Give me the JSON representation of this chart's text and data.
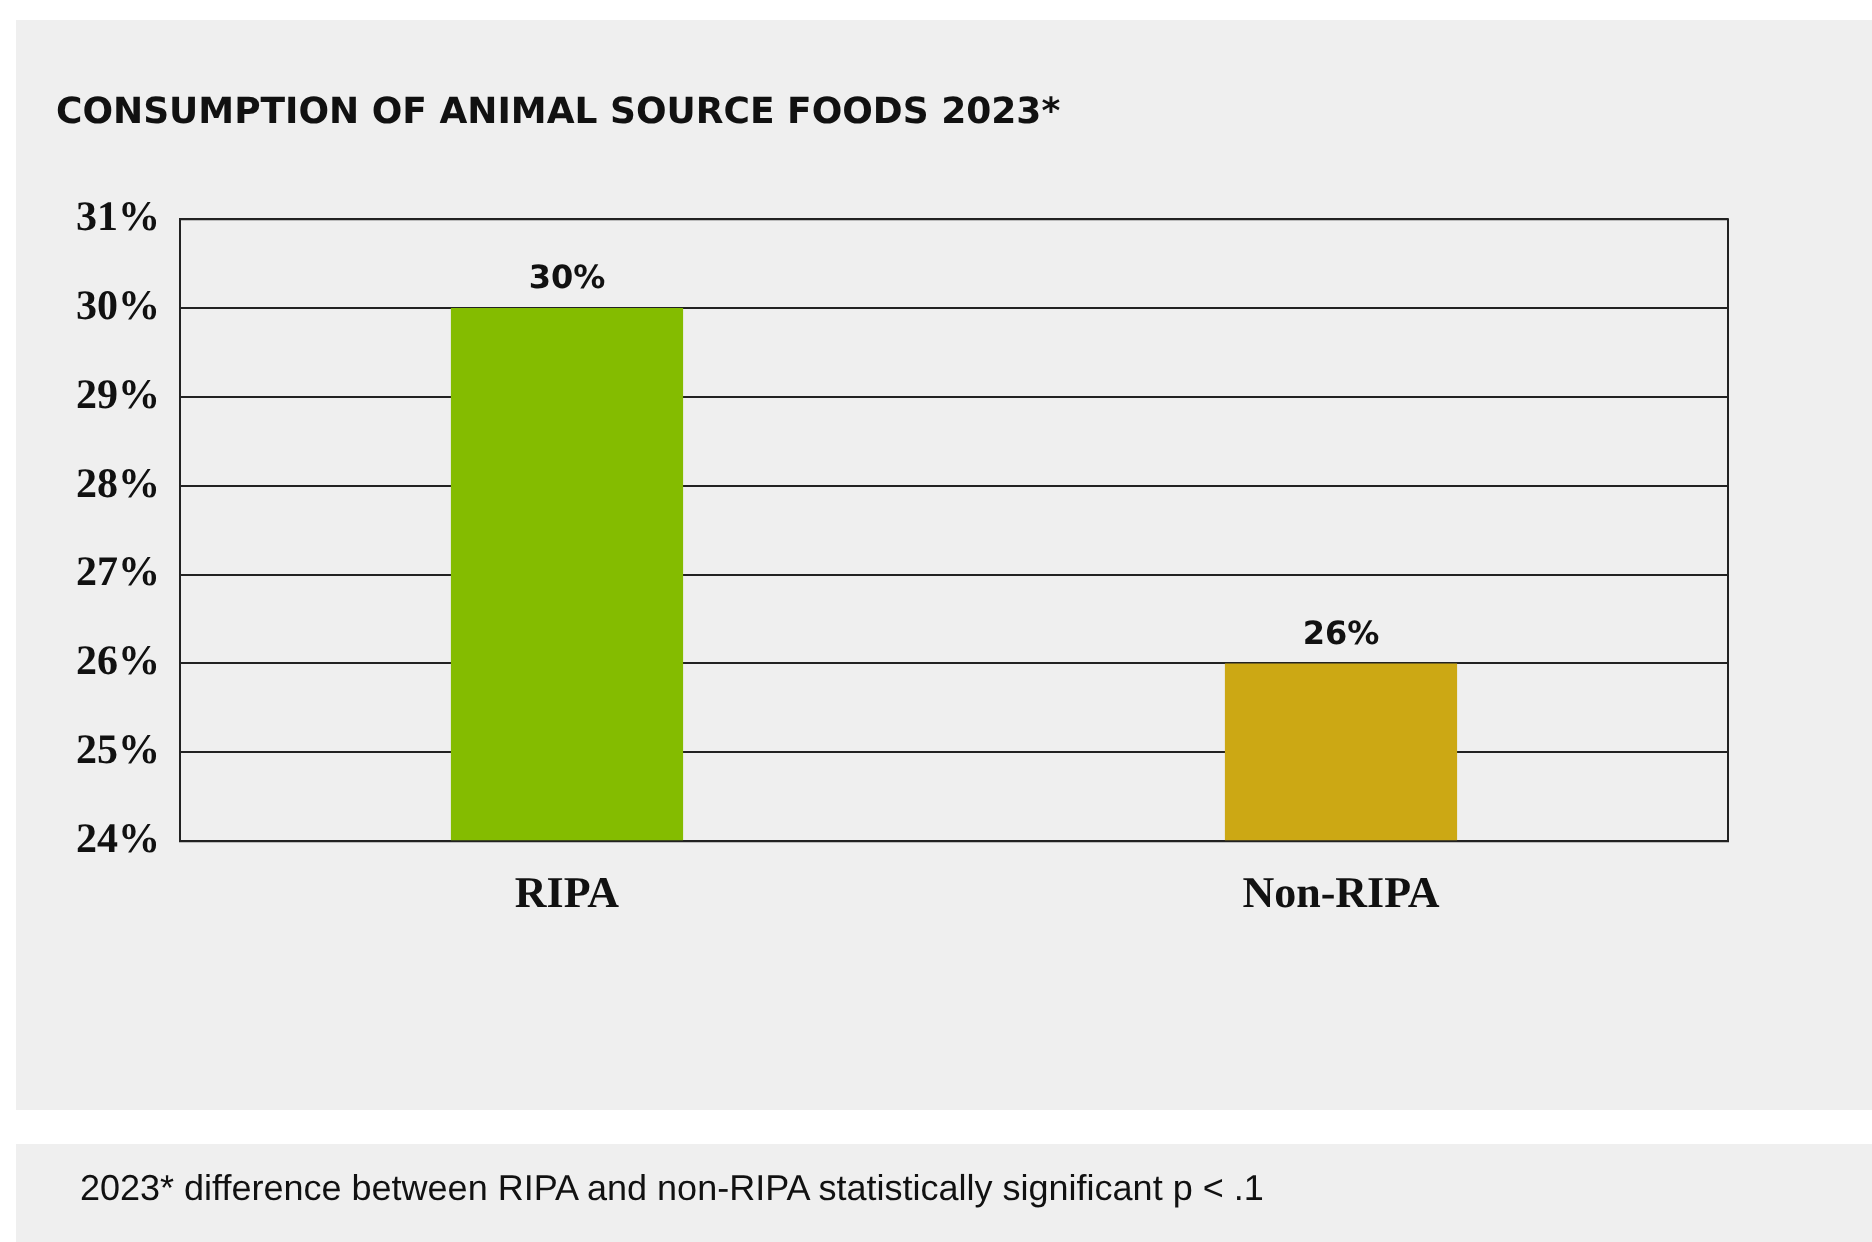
{
  "chart_data": {
    "type": "bar",
    "title": "CONSUMPTION OF ANIMAL SOURCE FOODS 2023*",
    "categories": [
      "RIPA",
      "Non-RIPA"
    ],
    "values": [
      30,
      26
    ],
    "colors": [
      "#84bc00",
      "#cca814"
    ],
    "value_labels": [
      "30%",
      "26%"
    ],
    "ylim": [
      24,
      31
    ],
    "yticks": [
      {
        "value": 24,
        "label": "24%"
      },
      {
        "value": 25,
        "label": "25%"
      },
      {
        "value": 26,
        "label": "26%"
      },
      {
        "value": 27,
        "label": "27%"
      },
      {
        "value": 28,
        "label": "28%"
      },
      {
        "value": 29,
        "label": "29%"
      },
      {
        "value": 30,
        "label": "30%"
      },
      {
        "value": 31,
        "label": "31%"
      }
    ],
    "grid": "y",
    "legend": false,
    "annotations": [
      "2023* difference between RIPA and non-RIPA statistically significant p < .1"
    ]
  }
}
